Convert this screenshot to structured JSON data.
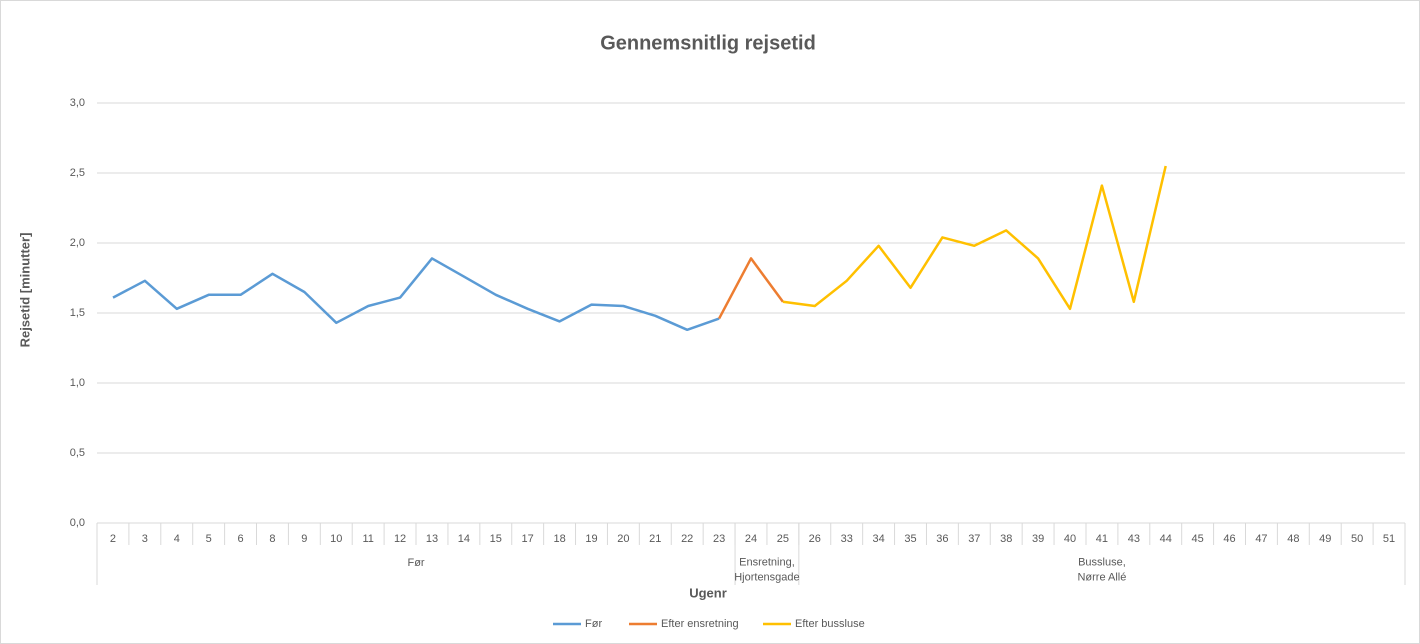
{
  "chart_data": {
    "type": "line",
    "title": "Gennemsnitlig rejsetid",
    "x_label": "Ugenr",
    "y_label": "Rejsetid [minutter]",
    "categories": [
      "2",
      "3",
      "4",
      "5",
      "6",
      "8",
      "9",
      "10",
      "11",
      "12",
      "13",
      "14",
      "15",
      "17",
      "18",
      "19",
      "20",
      "21",
      "22",
      "23",
      "24",
      "25",
      "26",
      "33",
      "34",
      "35",
      "36",
      "37",
      "38",
      "39",
      "40",
      "41",
      "43",
      "44",
      "45",
      "46",
      "47",
      "48",
      "49",
      "50",
      "51"
    ],
    "groups": [
      {
        "lines": [
          "Før"
        ],
        "start": 0,
        "end": 19
      },
      {
        "lines": [
          "Ensretning,",
          "Hjortensgade"
        ],
        "start": 20,
        "end": 21
      },
      {
        "lines": [
          "Bussluse,",
          "Nørre Allé"
        ],
        "start": 22,
        "end": 40
      }
    ],
    "series": [
      {
        "name": "Før",
        "color": "#5b9bd5",
        "values": [
          1.61,
          1.73,
          1.53,
          1.63,
          1.63,
          1.78,
          1.65,
          1.43,
          1.55,
          1.61,
          1.89,
          1.76,
          1.63,
          1.53,
          1.44,
          1.56,
          1.55,
          1.48,
          1.38,
          1.46,
          null,
          null,
          null,
          null,
          null,
          null,
          null,
          null,
          null,
          null,
          null,
          null,
          null,
          null,
          null,
          null,
          null,
          null,
          null,
          null,
          null
        ]
      },
      {
        "name": "Efter ensretning",
        "color": "#ed7d31",
        "values": [
          null,
          null,
          null,
          null,
          null,
          null,
          null,
          null,
          null,
          null,
          null,
          null,
          null,
          null,
          null,
          null,
          null,
          null,
          null,
          1.46,
          1.89,
          1.58,
          null,
          null,
          null,
          null,
          null,
          null,
          null,
          null,
          null,
          null,
          null,
          null,
          null,
          null,
          null,
          null,
          null,
          null,
          null
        ]
      },
      {
        "name": "Efter bussluse",
        "color": "#ffc000",
        "values": [
          null,
          null,
          null,
          null,
          null,
          null,
          null,
          null,
          null,
          null,
          null,
          null,
          null,
          null,
          null,
          null,
          null,
          null,
          null,
          null,
          null,
          1.58,
          1.55,
          1.73,
          1.98,
          1.68,
          2.04,
          1.98,
          2.09,
          1.89,
          1.53,
          2.41,
          1.58,
          2.55,
          null,
          null,
          null,
          null,
          null,
          null,
          null
        ]
      }
    ],
    "ylim": [
      0,
      3
    ],
    "yticks": [
      {
        "value": 0,
        "label": "0,0"
      },
      {
        "value": 0.5,
        "label": "0,5"
      },
      {
        "value": 1,
        "label": "1,0"
      },
      {
        "value": 1.5,
        "label": "1,5"
      },
      {
        "value": 2,
        "label": "2,0"
      },
      {
        "value": 2.5,
        "label": "2,5"
      },
      {
        "value": 3,
        "label": "3,0"
      }
    ],
    "grid": true,
    "legend": "bottom"
  }
}
